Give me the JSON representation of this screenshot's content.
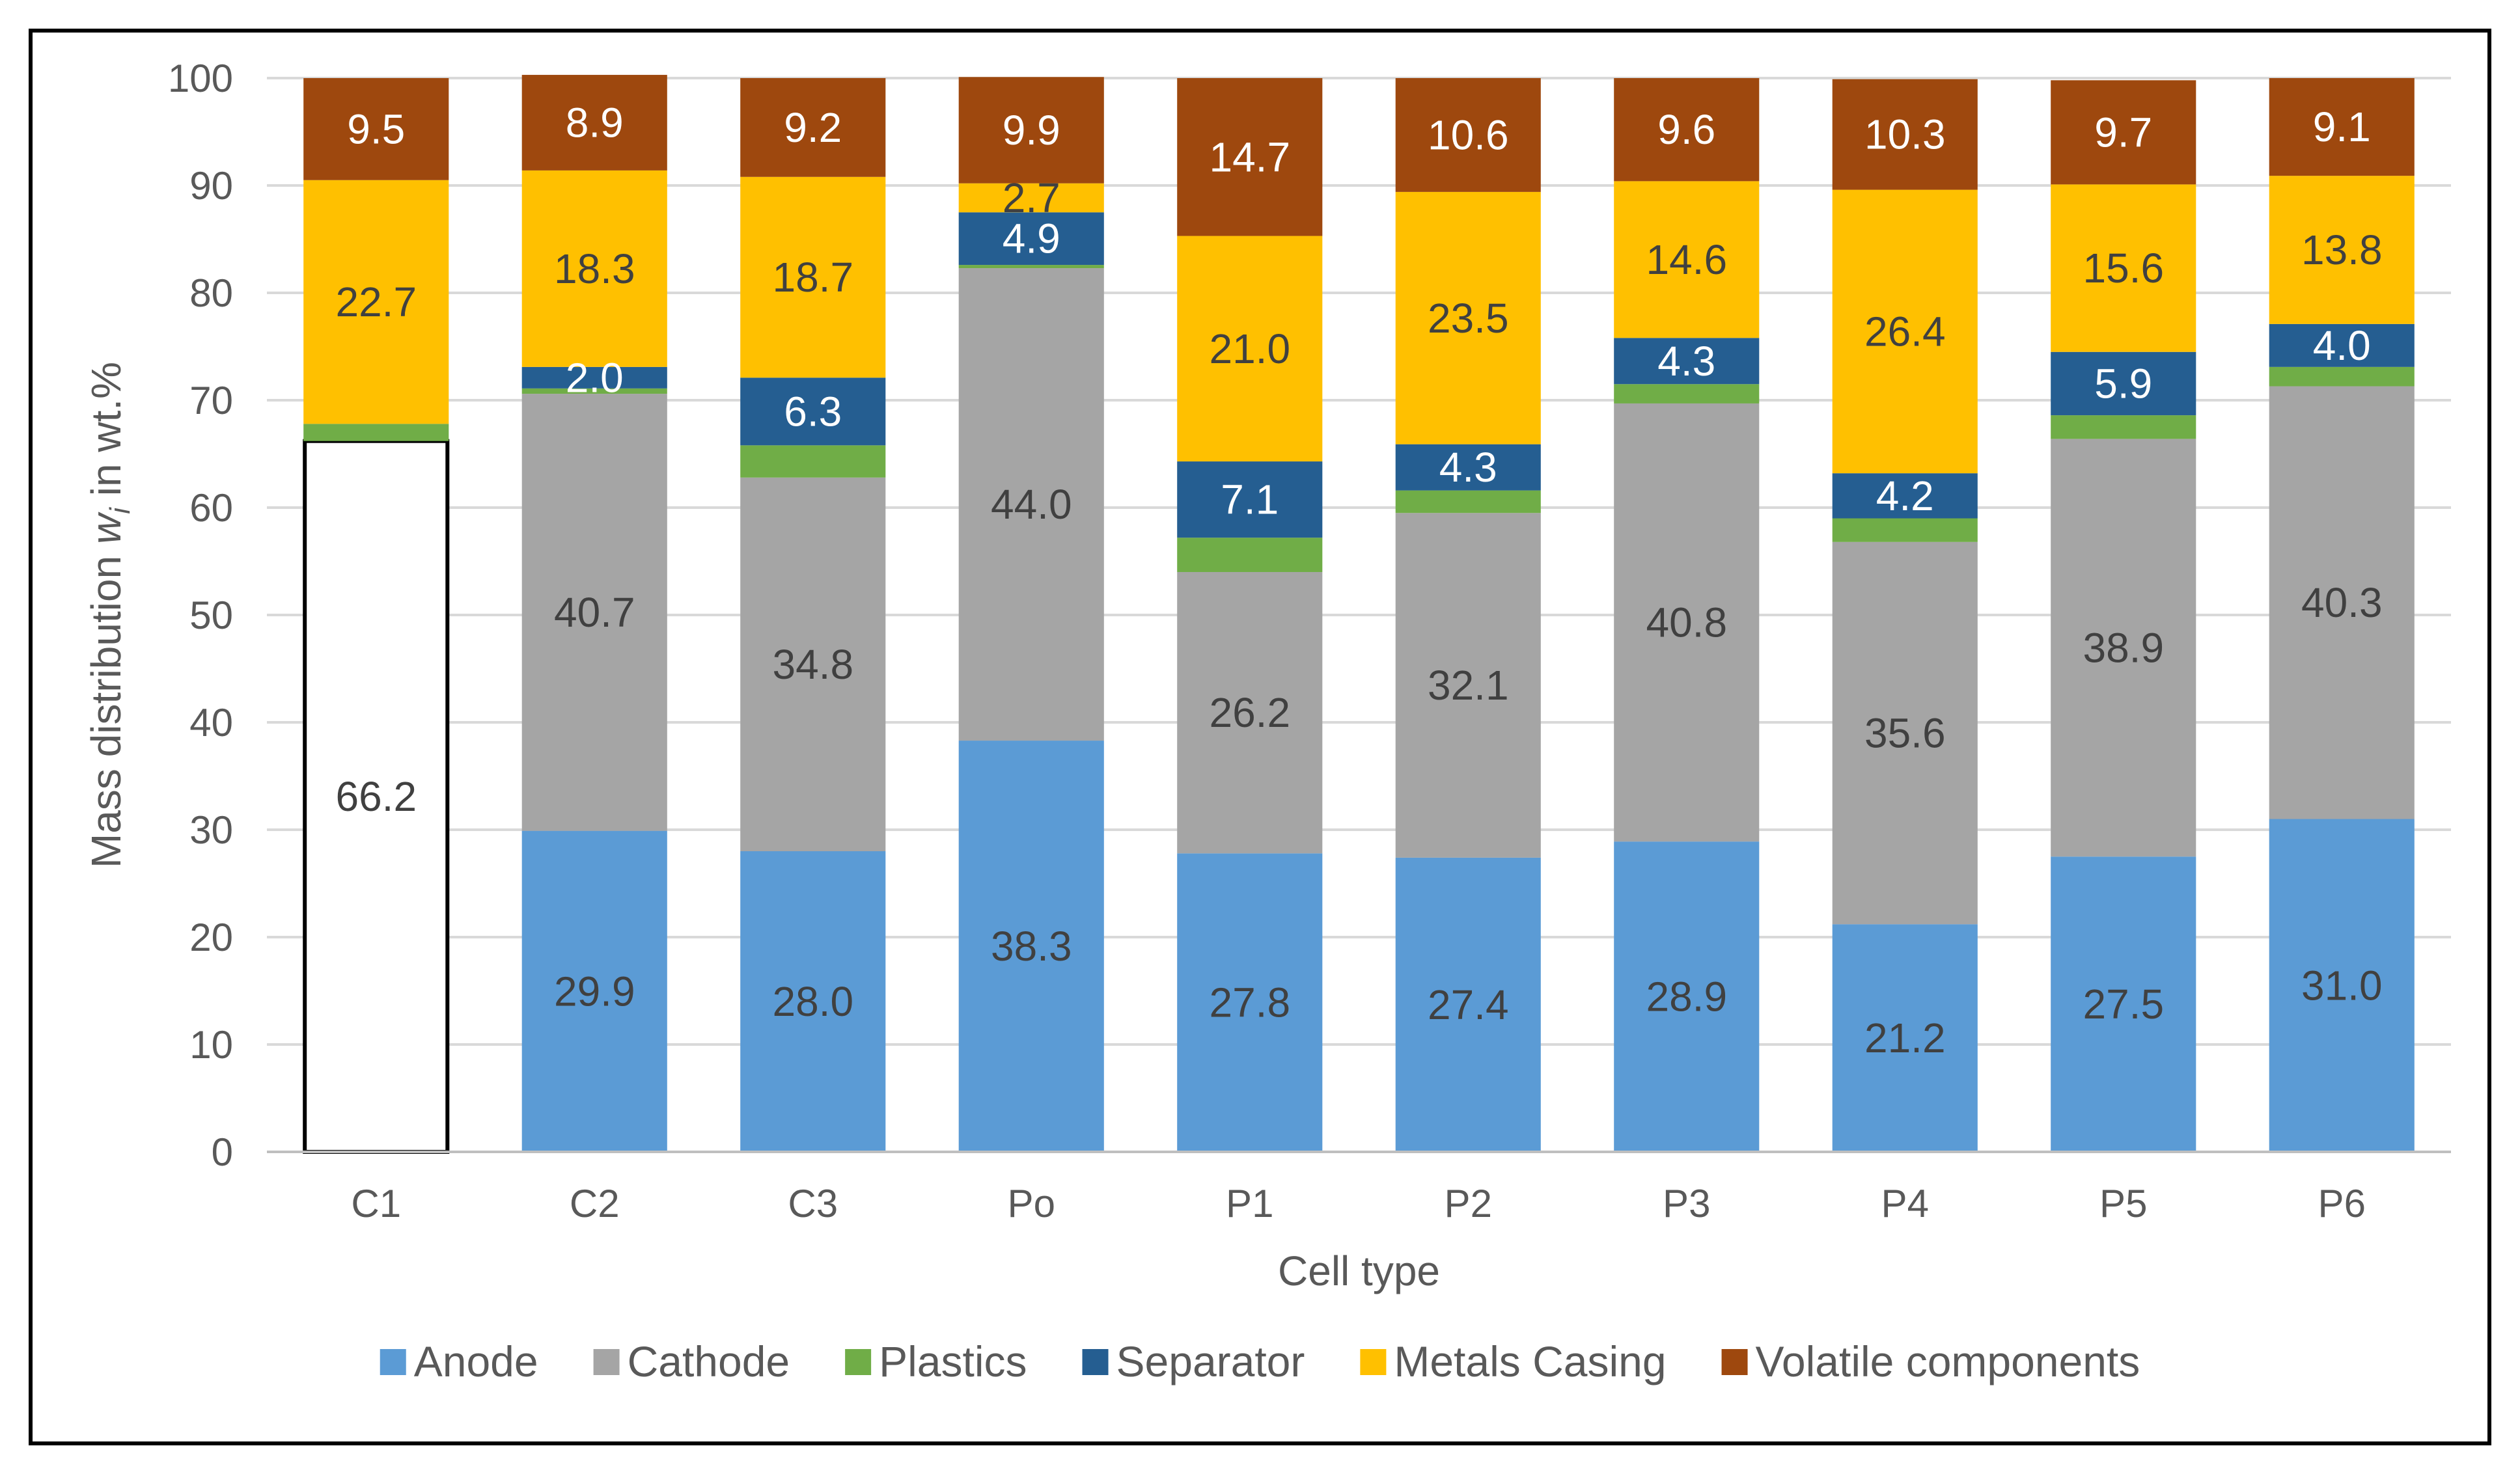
{
  "chart_data": {
    "type": "bar",
    "stacked": true,
    "xlabel": "Cell type",
    "ylabel": "Mass distribution w_i in wt.%",
    "ylabel_parts": {
      "before": "Mass distribution ",
      "var": "w",
      "sub": "i",
      "after": " in wt.%"
    },
    "ylim": [
      0,
      100
    ],
    "yticks": [
      0,
      10,
      20,
      30,
      40,
      50,
      60,
      70,
      80,
      90,
      100
    ],
    "grid": true,
    "legend_position": "bottom",
    "categories": [
      "C1",
      "C2",
      "C3",
      "Po",
      "P1",
      "P2",
      "P3",
      "P4",
      "P5",
      "P6"
    ],
    "series": [
      {
        "name": "Anode",
        "color": "#5B9BD5",
        "label_color": "#404040",
        "values": [
          null,
          29.9,
          28.0,
          38.3,
          27.8,
          27.4,
          28.9,
          21.2,
          27.5,
          31.0
        ],
        "labels": [
          null,
          "29.9",
          "28.0",
          "38.3",
          "27.8",
          "27.4",
          "28.9",
          "21.2",
          "27.5",
          "31.0"
        ]
      },
      {
        "name": "Cathode",
        "color": "#A5A5A5",
        "label_color": "#404040",
        "values": [
          null,
          40.7,
          34.8,
          44.0,
          26.2,
          32.1,
          40.8,
          35.6,
          38.9,
          40.3
        ],
        "labels": [
          null,
          "40.7",
          "34.8",
          "44.0",
          "26.2",
          "32.1",
          "40.8",
          "35.6",
          "38.9",
          "40.3"
        ]
      },
      {
        "name": "Plastics",
        "color": "#70AD47",
        "label_color": "#404040",
        "values": [
          1.6,
          0.5,
          3.0,
          0.3,
          3.2,
          2.1,
          1.8,
          2.2,
          2.2,
          1.8
        ],
        "labels": [
          null,
          null,
          null,
          null,
          null,
          null,
          null,
          null,
          null,
          null
        ]
      },
      {
        "name": "Separator",
        "color": "#255E91",
        "label_color": "#FFFFFF",
        "values": [
          0.0,
          2.0,
          6.3,
          4.9,
          7.1,
          4.3,
          4.3,
          4.2,
          5.9,
          4.0
        ],
        "labels": [
          null,
          "2.0",
          "6.3",
          "4.9",
          "7.1",
          "4.3",
          "4.3",
          "4.2",
          "5.9",
          "4.0"
        ]
      },
      {
        "name": "Metals Casing",
        "color": "#FFC000",
        "label_color": "#404040",
        "values": [
          22.7,
          18.3,
          18.7,
          2.7,
          21.0,
          23.5,
          14.6,
          26.4,
          15.6,
          13.8
        ],
        "labels": [
          "22.7",
          "18.3",
          "18.7",
          "2.7",
          "21.0",
          "23.5",
          "14.6",
          "26.4",
          "15.6",
          "13.8"
        ]
      },
      {
        "name": "Volatile components",
        "color": "#9E480E",
        "label_color": "#FFFFFF",
        "values": [
          9.5,
          8.9,
          9.2,
          9.9,
          14.7,
          10.6,
          9.6,
          10.3,
          9.7,
          9.1
        ],
        "labels": [
          "9.5",
          "8.9",
          "9.2",
          "9.9",
          "14.7",
          "10.6",
          "9.6",
          "10.3",
          "9.7",
          "9.1"
        ]
      }
    ],
    "unsplit_bar": {
      "category": "C1",
      "value": 66.2,
      "label": "66.2",
      "fill": "#FFFFFF",
      "outline": "#000000"
    },
    "gridline_color": "#D9D9D9",
    "axis_line_color": "#BFBFBF"
  }
}
